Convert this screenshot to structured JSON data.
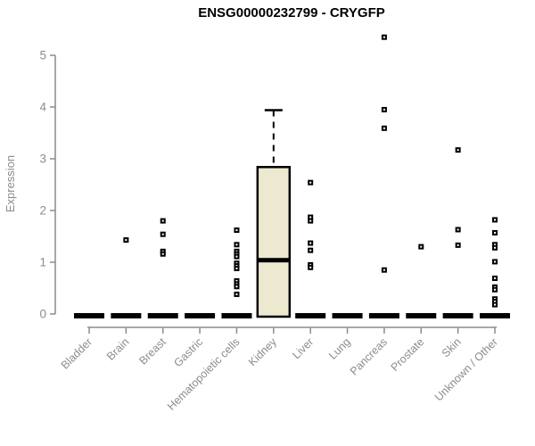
{
  "title": "ENSG00000232799 - CRYGFP",
  "y_axis": {
    "label": "Expression",
    "ticks": [
      0,
      1,
      2,
      3,
      4,
      5
    ],
    "min": 0,
    "max": 5
  },
  "colors": {
    "box_fill": "#EDE8D0",
    "box_stroke": "#000000",
    "median": "#000000",
    "marker_outer": "#000000",
    "marker_inner": "#ffffff",
    "zero_bar": "#000000",
    "axis": "#8c8c8c",
    "tick_text": "#8c8c8c",
    "title_text": "#000000"
  },
  "chart_data": {
    "type": "boxplot-scatter",
    "title": "ENSG00000232799 - CRYGFP",
    "xlabel": "",
    "ylabel": "Expression",
    "ylim": [
      0,
      5.5
    ],
    "grid": false,
    "legend": false,
    "categories": [
      "Bladder",
      "Brain",
      "Breast",
      "Gastric",
      "Hematopoietic cells",
      "Kidney",
      "Liver",
      "Lung",
      "Pancreas",
      "Prostate",
      "Skin",
      "Unknown / Other"
    ],
    "series": [
      {
        "name": "Bladder",
        "box": {
          "q1": 0,
          "median": 0,
          "q3": 0,
          "whisker_low": 0,
          "whisker_high": 0
        },
        "points": []
      },
      {
        "name": "Brain",
        "box": {
          "q1": 0,
          "median": 0,
          "q3": 0,
          "whisker_low": 0,
          "whisker_high": 0
        },
        "points": [
          1.43
        ]
      },
      {
        "name": "Breast",
        "box": {
          "q1": 0,
          "median": 0,
          "q3": 0,
          "whisker_low": 0,
          "whisker_high": 0
        },
        "points": [
          1.8,
          1.54,
          1.21,
          1.16
        ]
      },
      {
        "name": "Gastric",
        "box": {
          "q1": 0,
          "median": 0,
          "q3": 0,
          "whisker_low": 0,
          "whisker_high": 0
        },
        "points": []
      },
      {
        "name": "Hematopoietic cells",
        "box": {
          "q1": 0,
          "median": 0,
          "q3": 0,
          "whisker_low": 0,
          "whisker_high": 0
        },
        "points": [
          1.62,
          1.34,
          1.21,
          1.16,
          1.11,
          0.98,
          0.93,
          0.88,
          0.64,
          0.58,
          0.53,
          0.38
        ]
      },
      {
        "name": "Kidney",
        "box": {
          "q1": 0,
          "median": 1.04,
          "q3": 2.84,
          "whisker_low": 0,
          "whisker_high": 3.94
        },
        "points": []
      },
      {
        "name": "Liver",
        "box": {
          "q1": 0,
          "median": 0,
          "q3": 0,
          "whisker_low": 0,
          "whisker_high": 0
        },
        "points": [
          2.54,
          1.87,
          1.8,
          1.37,
          1.23,
          0.95,
          0.9
        ]
      },
      {
        "name": "Lung",
        "box": {
          "q1": 0,
          "median": 0,
          "q3": 0,
          "whisker_low": 0,
          "whisker_high": 0
        },
        "points": []
      },
      {
        "name": "Pancreas",
        "box": {
          "q1": 0,
          "median": 0,
          "q3": 0,
          "whisker_low": 0,
          "whisker_high": 0
        },
        "points": [
          5.35,
          3.95,
          3.59,
          0.85
        ]
      },
      {
        "name": "Prostate",
        "box": {
          "q1": 0,
          "median": 0,
          "q3": 0,
          "whisker_low": 0,
          "whisker_high": 0
        },
        "points": [
          1.3
        ]
      },
      {
        "name": "Skin",
        "box": {
          "q1": 0,
          "median": 0,
          "q3": 0,
          "whisker_low": 0,
          "whisker_high": 0
        },
        "points": [
          3.17,
          1.63,
          1.33
        ]
      },
      {
        "name": "Unknown / Other",
        "box": {
          "q1": 0,
          "median": 0,
          "q3": 0,
          "whisker_low": 0,
          "whisker_high": 0
        },
        "points": [
          1.82,
          1.57,
          1.34,
          1.28,
          1.01,
          0.69,
          0.52,
          0.47,
          0.29,
          0.24,
          0.18
        ]
      }
    ]
  }
}
